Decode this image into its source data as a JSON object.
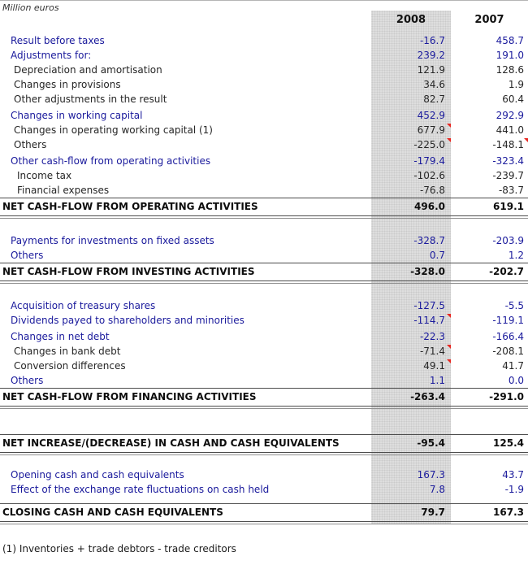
{
  "unit_label": "Million euros",
  "columns": [
    "2008",
    "2007"
  ],
  "table": {
    "rows": [
      {
        "type": "item",
        "label": "Result before taxes",
        "v2008": "-16.7",
        "v2007": "458.7",
        "style": "blue",
        "indent": 1
      },
      {
        "type": "item",
        "label": "Adjustments for:",
        "v2008": "239.2",
        "v2007": "191.0",
        "style": "blue",
        "indent": 1
      },
      {
        "type": "item",
        "label": "Depreciation and amortisation",
        "v2008": "121.9",
        "v2007": "128.6",
        "style": "plain",
        "indent": 2
      },
      {
        "type": "item",
        "label": "Changes in provisions",
        "v2008": "34.6",
        "v2007": "1.9",
        "style": "plain",
        "indent": 2
      },
      {
        "type": "item",
        "label": "Other adjustments in the result",
        "v2008": "82.7",
        "v2007": "60.4",
        "style": "plain",
        "indent": 2
      },
      {
        "type": "gap",
        "height": 2
      },
      {
        "type": "item",
        "label": "Changes in working capital",
        "v2008": "452.9",
        "v2007": "292.9",
        "style": "blue",
        "indent": 1
      },
      {
        "type": "item",
        "label": "Changes in operating working capital (1)",
        "v2008": "677.9",
        "v2007": "441.0",
        "style": "plain",
        "indent": 2,
        "marker_2008": true
      },
      {
        "type": "item",
        "label": "Others",
        "v2008": "-225.0",
        "v2007": "-148.1",
        "style": "plain",
        "indent": 2,
        "marker_2008": true,
        "marker_2007": true
      },
      {
        "type": "gap",
        "height": 2
      },
      {
        "type": "item",
        "label": "Other cash-flow from operating activities",
        "v2008": "-179.4",
        "v2007": "-323.4",
        "style": "blue",
        "indent": 1
      },
      {
        "type": "item",
        "label": "Income tax",
        "v2008": "-102.6",
        "v2007": "-239.7",
        "style": "plain",
        "indent": 3
      },
      {
        "type": "item",
        "label": "Financial expenses",
        "v2008": "-76.8",
        "v2007": "-83.7",
        "style": "plain",
        "indent": 3
      },
      {
        "type": "total",
        "label": "NET CASH-FLOW FROM OPERATING ACTIVITIES",
        "v2008": "496.0",
        "v2007": "619.1"
      },
      {
        "type": "gap",
        "height": 18
      },
      {
        "type": "item",
        "label": "Payments for investments on fixed assets",
        "v2008": "-328.7",
        "v2007": "-203.9",
        "style": "blue",
        "indent": 1
      },
      {
        "type": "item",
        "label": "Others",
        "v2008": "0.7",
        "v2007": "1.2",
        "style": "blue",
        "indent": 1
      },
      {
        "type": "total",
        "label": "NET CASH-FLOW FROM INVESTING ACTIVITIES",
        "v2008": "-328.0",
        "v2007": "-202.7"
      },
      {
        "type": "gap",
        "height": 18
      },
      {
        "type": "item",
        "label": "Acquisition of treasury shares",
        "v2008": "-127.5",
        "v2007": "-5.5",
        "style": "blue",
        "indent": 1
      },
      {
        "type": "item",
        "label": "Dividends payed to shareholders and minorities",
        "v2008": "-114.7",
        "v2007": "-119.1",
        "style": "blue",
        "indent": 1,
        "marker_2008": true
      },
      {
        "type": "gap",
        "height": 2
      },
      {
        "type": "item",
        "label": "Changes in net debt",
        "v2008": "-22.3",
        "v2007": "-166.4",
        "style": "blue",
        "indent": 1
      },
      {
        "type": "item",
        "label": "Changes in bank debt",
        "v2008": "-71.4",
        "v2007": "-208.1",
        "style": "plain",
        "indent": 2,
        "marker_2008": true
      },
      {
        "type": "item",
        "label": "Conversion differences",
        "v2008": "49.1",
        "v2007": "41.7",
        "style": "plain",
        "indent": 2,
        "marker_2008": true
      },
      {
        "type": "item",
        "label": "Others",
        "v2008": "1.1",
        "v2007": "0.0",
        "style": "blue",
        "indent": 1
      },
      {
        "type": "total",
        "label": "NET CASH-FLOW FROM FINANCING ACTIVITIES",
        "v2008": "-263.4",
        "v2007": "-291.0"
      },
      {
        "type": "gap",
        "height": 31
      },
      {
        "type": "total",
        "label": "NET INCREASE/(DECREASE) IN CASH AND CASH EQUIVALENTS",
        "v2008": "-95.4",
        "v2007": "125.4"
      },
      {
        "type": "gap",
        "height": 15
      },
      {
        "type": "item",
        "label": "Opening cash and cash equivalents",
        "v2008": "167.3",
        "v2007": "43.7",
        "style": "blue",
        "indent": 1
      },
      {
        "type": "item",
        "label": "Effect of the exchange rate fluctuations on cash held",
        "v2008": "7.8",
        "v2007": "-1.9",
        "style": "blue",
        "indent": 1
      },
      {
        "type": "gap",
        "height": 8
      },
      {
        "type": "total",
        "label": "CLOSING CASH AND CASH EQUIVALENTS",
        "v2008": "79.7",
        "v2007": "167.3"
      }
    ]
  },
  "footnote": "(1) Inventories + trade debtors - trade creditors",
  "colors": {
    "accent_blue": "#1a1a9c",
    "text_dark": "#262626",
    "column_highlight_gray": "#dedede",
    "comment_marker_red": "#e8251f",
    "rule_dark": "#4d4d4d"
  }
}
